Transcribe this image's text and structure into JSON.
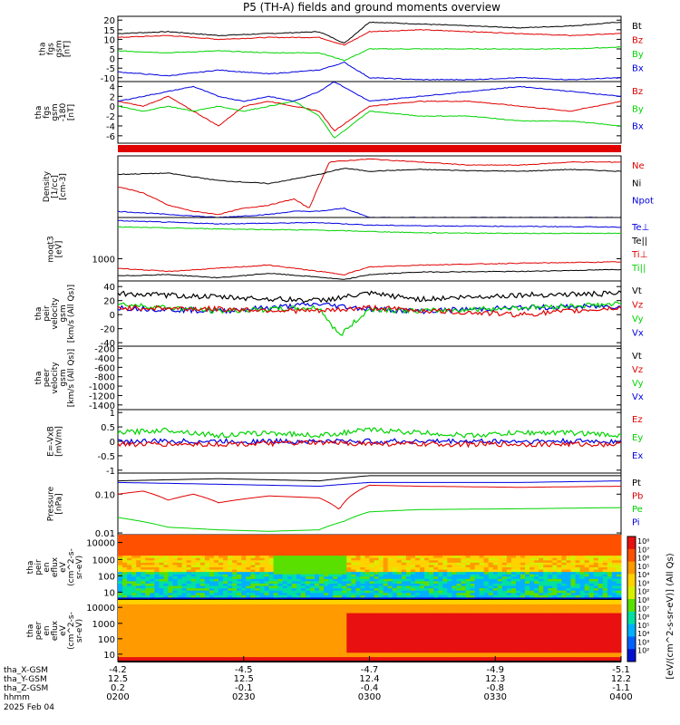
{
  "title": "P5 (TH-A) fields and ground moments overview",
  "chart_data": {
    "type": "line",
    "title": "P5 (TH-A) fields and ground moments overview",
    "colors": {
      "black": "#000000",
      "red": "#e00000",
      "green": "#00d400",
      "blue": "#0000e0"
    },
    "panels": [
      {
        "id": "fgs_gsm",
        "ylabel": [
          "tha",
          "fgs",
          "gsm",
          "[nT]"
        ],
        "ylim": [
          -12,
          22
        ],
        "yticks": [
          20,
          15,
          10,
          5,
          0,
          -5,
          -10
        ],
        "legend": [
          "Bt",
          "Bz",
          "By",
          "Bx"
        ],
        "series": [
          {
            "name": "Bt",
            "color": "black",
            "x": [
              0,
              0.1,
              0.2,
              0.3,
              0.4,
              0.45,
              0.5,
              0.6,
              0.7,
              0.8,
              0.9,
              1
            ],
            "y": [
              13,
              14,
              12,
              13,
              14,
              8,
              19,
              18,
              17,
              16,
              17,
              19
            ]
          },
          {
            "name": "Bz",
            "color": "red",
            "x": [
              0,
              0.1,
              0.2,
              0.3,
              0.4,
              0.45,
              0.5,
              0.6,
              0.7,
              0.8,
              0.9,
              1
            ],
            "y": [
              11,
              12,
              10,
              11,
              11,
              7,
              14,
              15,
              14,
              13,
              12,
              13
            ]
          },
          {
            "name": "By",
            "color": "green",
            "x": [
              0,
              0.1,
              0.2,
              0.3,
              0.4,
              0.45,
              0.5,
              0.6,
              0.7,
              0.8,
              0.9,
              1
            ],
            "y": [
              4,
              3,
              4,
              3,
              3,
              -1,
              5,
              5,
              5,
              5,
              5,
              6
            ]
          },
          {
            "name": "Bx",
            "color": "blue",
            "x": [
              0,
              0.1,
              0.2,
              0.3,
              0.4,
              0.45,
              0.5,
              0.6,
              0.7,
              0.8,
              0.9,
              1
            ],
            "y": [
              -7,
              -9,
              -6,
              -8,
              -6,
              -2,
              -10,
              -11,
              -11,
              -10,
              -11,
              -10
            ]
          }
        ]
      },
      {
        "id": "fgs_dsl",
        "ylabel": [
          "tha",
          "fgs",
          "gsm",
          "-180",
          "[nT]"
        ],
        "ylim": [
          -7.5,
          5
        ],
        "yticks": [
          4,
          2,
          0,
          -2,
          -4,
          -6
        ],
        "legend": [
          "Bz",
          "By",
          "Bx"
        ],
        "series": [
          {
            "name": "Bz",
            "color": "red",
            "x": [
              0,
              0.05,
              0.1,
              0.15,
              0.2,
              0.25,
              0.3,
              0.35,
              0.4,
              0.43,
              0.5,
              0.6,
              0.7,
              0.8,
              0.9,
              1
            ],
            "y": [
              1,
              0,
              2,
              -1,
              -4,
              0,
              1,
              0,
              -1,
              -5,
              0,
              1,
              1,
              0,
              -1,
              1
            ]
          },
          {
            "name": "By",
            "color": "green",
            "x": [
              0,
              0.05,
              0.1,
              0.15,
              0.2,
              0.25,
              0.3,
              0.35,
              0.4,
              0.43,
              0.5,
              0.6,
              0.7,
              0.8,
              0.9,
              1
            ],
            "y": [
              0,
              -1,
              0,
              -1,
              0,
              -1,
              0,
              1,
              -2,
              -6.5,
              -1,
              -2,
              -2,
              -3,
              -3,
              -4
            ]
          },
          {
            "name": "Bx",
            "color": "blue",
            "x": [
              0,
              0.05,
              0.1,
              0.15,
              0.2,
              0.25,
              0.3,
              0.35,
              0.4,
              0.43,
              0.5,
              0.6,
              0.7,
              0.8,
              0.9,
              1
            ],
            "y": [
              1,
              2,
              3,
              4,
              2,
              1,
              2,
              1,
              3,
              5,
              1,
              2,
              3,
              4,
              3,
              2
            ]
          }
        ]
      },
      {
        "id": "density",
        "ylabel": [
          "Density",
          "[1/cc]",
          "[cm-3]"
        ],
        "ylim": [
          0,
          1
        ],
        "yticks": [],
        "legend": [
          "Ne",
          "Ni",
          "Npot"
        ],
        "series": [
          {
            "name": "Ne",
            "color": "red",
            "x": [
              0,
              0.05,
              0.1,
              0.15,
              0.2,
              0.25,
              0.3,
              0.35,
              0.38,
              0.42,
              0.5,
              0.6,
              0.7,
              0.8,
              0.9,
              1
            ],
            "y": [
              0.5,
              0.4,
              0.2,
              0.1,
              0.05,
              0.15,
              0.2,
              0.3,
              0.15,
              0.9,
              0.95,
              0.9,
              0.85,
              0.85,
              0.9,
              0.9
            ]
          },
          {
            "name": "Ni",
            "color": "black",
            "x": [
              0,
              0.1,
              0.2,
              0.3,
              0.4,
              0.45,
              0.5,
              0.6,
              0.7,
              0.8,
              0.9,
              1
            ],
            "y": [
              0.7,
              0.72,
              0.6,
              0.55,
              0.7,
              0.8,
              0.75,
              0.78,
              0.76,
              0.75,
              0.78,
              0.75
            ]
          },
          {
            "name": "Npot",
            "color": "blue",
            "x": [
              0,
              0.1,
              0.2,
              0.3,
              0.35,
              0.4,
              0.45,
              0.5,
              0.6,
              0.7,
              0.8,
              0.9,
              1
            ],
            "y": [
              0.1,
              0.05,
              0.0,
              0.05,
              0.1,
              0.1,
              0.15,
              0.0,
              0.0,
              0.0,
              0.0,
              0.0,
              0.0
            ]
          }
        ]
      },
      {
        "id": "temperature",
        "ylabel": [
          "moqt3",
          "[eV]"
        ],
        "ylim": [
          0,
          1
        ],
        "yticks": [
          1000
        ],
        "ytick_pos": [
          0.35
        ],
        "legend": [
          "Te⊥",
          "Te||",
          "Ti⊥",
          "Ti||"
        ],
        "series": [
          {
            "name": "Te⊥",
            "color": "blue",
            "x": [
              0,
              0.2,
              0.4,
              0.5,
              0.6,
              0.8,
              1
            ],
            "y": [
              0.95,
              0.9,
              0.92,
              0.88,
              0.87,
              0.86,
              0.85
            ]
          },
          {
            "name": "Ti||",
            "color": "green",
            "x": [
              0,
              0.2,
              0.4,
              0.5,
              0.6,
              0.8,
              1
            ],
            "y": [
              0.85,
              0.82,
              0.8,
              0.78,
              0.76,
              0.75,
              0.75
            ]
          },
          {
            "name": "Ti⊥",
            "color": "red",
            "x": [
              0,
              0.1,
              0.2,
              0.3,
              0.4,
              0.45,
              0.5,
              0.6,
              0.8,
              1
            ],
            "y": [
              0.2,
              0.15,
              0.2,
              0.25,
              0.15,
              0.1,
              0.22,
              0.25,
              0.28,
              0.3
            ]
          },
          {
            "name": "Te||",
            "color": "black",
            "x": [
              0,
              0.1,
              0.2,
              0.3,
              0.4,
              0.45,
              0.5,
              0.6,
              0.8,
              1
            ],
            "y": [
              0.08,
              0.1,
              0.05,
              0.12,
              0.06,
              0.02,
              0.1,
              0.14,
              0.15,
              0.18
            ]
          }
        ]
      },
      {
        "id": "peir_velocity",
        "ylabel": [
          "tha",
          "peir",
          "velocity",
          "gsm",
          "[km/s (All Qs)]"
        ],
        "ylim": [
          -45,
          48
        ],
        "yticks": [
          40,
          20,
          0,
          -20,
          -40
        ],
        "legend": [
          "Vt",
          "Vz",
          "Vy",
          "Vx"
        ],
        "noisy": true,
        "series": [
          {
            "name": "Vx",
            "color": "blue",
            "x": [
              0,
              0.2,
              0.4,
              0.5,
              0.6,
              0.8,
              1
            ],
            "y": [
              10,
              5,
              15,
              8,
              5,
              10,
              12
            ]
          },
          {
            "name": "Vy",
            "color": "green",
            "x": [
              0,
              0.2,
              0.4,
              0.44,
              0.5,
              0.6,
              0.8,
              1
            ],
            "y": [
              15,
              5,
              10,
              -30,
              8,
              5,
              10,
              15
            ]
          },
          {
            "name": "Vz",
            "color": "red",
            "x": [
              0,
              0.2,
              0.4,
              0.5,
              0.6,
              0.8,
              1
            ],
            "y": [
              10,
              8,
              5,
              10,
              6,
              0,
              10
            ]
          },
          {
            "name": "Vt",
            "color": "black",
            "x": [
              0,
              0.2,
              0.4,
              0.5,
              0.6,
              0.8,
              1
            ],
            "y": [
              30,
              25,
              20,
              30,
              22,
              28,
              30
            ]
          }
        ]
      },
      {
        "id": "peer_velocity",
        "ylabel": [
          "tha",
          "peer",
          "velocity",
          "gsm",
          "[km/s (All Qs)]"
        ],
        "ylim": [
          -1500,
          -150
        ],
        "yticks": [
          -200,
          -400,
          -600,
          -800,
          -1000,
          -1200,
          -1400
        ],
        "legend": [
          "Vt",
          "Vz",
          "Vy",
          "Vx"
        ],
        "series": []
      },
      {
        "id": "efield",
        "ylabel": [
          "E=-VxB",
          "[mV/m]"
        ],
        "ylim": [
          -1.1,
          1.1
        ],
        "yticks": [
          1.0,
          0.5,
          0.0,
          -0.5,
          -1.0
        ],
        "legend": [
          "Ez",
          "Ey",
          "Ex"
        ],
        "noisy": true,
        "series": [
          {
            "name": "Ey",
            "color": "green",
            "x": [
              0,
              0.1,
              0.2,
              0.3,
              0.4,
              0.5,
              0.6,
              0.7,
              0.8,
              0.9,
              1
            ],
            "y": [
              0.3,
              0.4,
              0.2,
              0.3,
              0.2,
              0.4,
              0.3,
              0.2,
              0.3,
              0.3,
              0.2
            ]
          },
          {
            "name": "Ex",
            "color": "blue",
            "x": [
              0,
              0.2,
              0.4,
              0.6,
              0.8,
              1
            ],
            "y": [
              0.0,
              0.0,
              0.0,
              0.0,
              0.0,
              0.0
            ]
          },
          {
            "name": "Ez",
            "color": "red",
            "x": [
              0,
              0.2,
              0.4,
              0.6,
              0.8,
              1
            ],
            "y": [
              -0.1,
              -0.1,
              -0.05,
              -0.1,
              -0.1,
              -0.1
            ]
          }
        ]
      },
      {
        "id": "pressure",
        "ylabel": [
          "Pressure",
          "[nPa]"
        ],
        "ylim": [
          0.009,
          0.35
        ],
        "log": true,
        "yticks": [
          0.1,
          0.01
        ],
        "legend": [
          "Pt",
          "Pb",
          "Pe",
          "Pi"
        ],
        "series": [
          {
            "name": "Pt",
            "color": "black",
            "x": [
              0,
              0.2,
              0.4,
              0.5,
              0.6,
              0.8,
              1
            ],
            "y": [
              0.22,
              0.25,
              0.22,
              0.3,
              0.3,
              0.3,
              0.3
            ]
          },
          {
            "name": "Pi",
            "color": "blue",
            "x": [
              0,
              0.2,
              0.4,
              0.5,
              0.6,
              0.8,
              1
            ],
            "y": [
              0.2,
              0.18,
              0.16,
              0.2,
              0.2,
              0.2,
              0.22
            ]
          },
          {
            "name": "Pb",
            "color": "red",
            "x": [
              0,
              0.05,
              0.1,
              0.15,
              0.2,
              0.3,
              0.4,
              0.44,
              0.5,
              0.6,
              0.8,
              1
            ],
            "y": [
              0.1,
              0.12,
              0.07,
              0.1,
              0.06,
              0.09,
              0.08,
              0.04,
              0.17,
              0.16,
              0.15,
              0.16
            ]
          },
          {
            "name": "Pe",
            "color": "green",
            "x": [
              0,
              0.1,
              0.2,
              0.3,
              0.4,
              0.45,
              0.5,
              0.6,
              0.8,
              1
            ],
            "y": [
              0.025,
              0.014,
              0.012,
              0.011,
              0.012,
              0.02,
              0.035,
              0.04,
              0.042,
              0.045
            ]
          }
        ]
      },
      {
        "id": "peir_spec",
        "type": "heatmap",
        "ylabel": [
          "tha",
          "peir",
          "en",
          "eflux",
          "eV",
          "(cm^2-s-",
          "sr-eV)"
        ],
        "yticks": [
          10000,
          1000,
          100,
          10
        ]
      },
      {
        "id": "peer_spec",
        "type": "heatmap",
        "ylabel": [
          "tha",
          "peer",
          "en",
          "eflux",
          "eV",
          "(cm^2-s-",
          "sr-eV)"
        ],
        "yticks": [
          10000,
          1000,
          100,
          10
        ]
      }
    ],
    "colorbar": {
      "label": "[eV/(cm^2-s-sr-eV)] (All Qs)",
      "ticks": [
        "10⁸",
        "10⁷",
        "10⁶",
        "10⁵",
        "10⁴",
        "10³",
        "10²",
        "10⁸",
        "10⁷",
        "10⁶",
        "10⁵",
        "10⁴",
        "10³",
        "10²"
      ]
    },
    "x_axis": {
      "tick_labels_hhmm": [
        "0200",
        "0230",
        "0300",
        "0330",
        "0400"
      ],
      "rows": [
        {
          "label": "tha_X-GSM",
          "values": [
            "-4.2",
            "-4.5",
            "-4.7",
            "-4.9",
            "-5.1"
          ]
        },
        {
          "label": "tha_Y-GSM",
          "values": [
            "12.5",
            "12.5",
            "12.4",
            "12.3",
            "12.2"
          ]
        },
        {
          "label": "tha_Z-GSM",
          "values": [
            "0.2",
            "-0.1",
            "-0.4",
            "-0.8",
            "-1.1"
          ]
        },
        {
          "label": "hhmm",
          "values": [
            "0200",
            "0230",
            "0300",
            "0330",
            "0400"
          ]
        }
      ],
      "date": "2025 Feb 04"
    }
  }
}
